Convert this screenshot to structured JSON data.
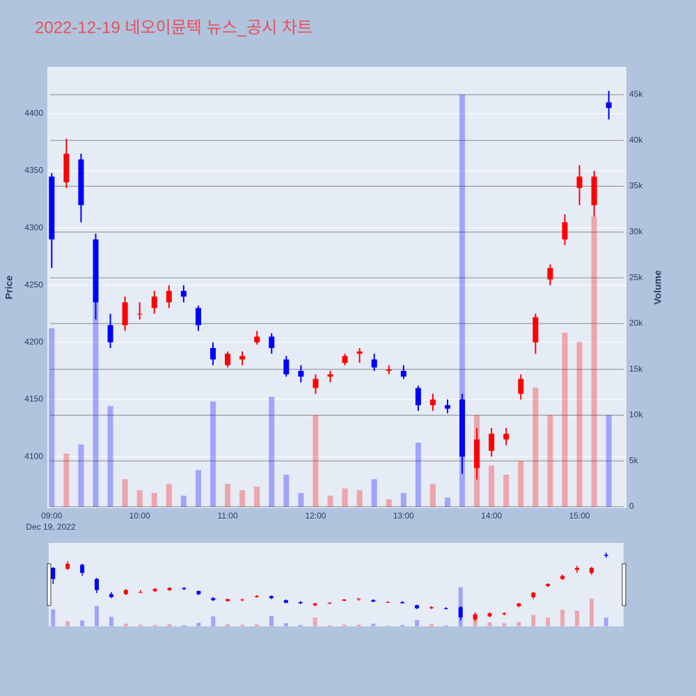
{
  "chart_data": {
    "type": "candlestick",
    "title": "2022-12-19 네오이뮨텍 뉴스_공시 차트",
    "y_label": "Price",
    "y2_label": "Volume",
    "x_sublabel": "Dec 19, 2022",
    "x": [
      "09:00",
      "09:10",
      "09:20",
      "09:30",
      "09:40",
      "09:50",
      "10:00",
      "10:10",
      "10:20",
      "10:30",
      "10:40",
      "10:50",
      "11:00",
      "11:10",
      "11:20",
      "11:30",
      "11:40",
      "11:50",
      "12:00",
      "12:10",
      "12:20",
      "12:30",
      "12:40",
      "12:50",
      "13:00",
      "13:10",
      "13:20",
      "13:30",
      "13:40",
      "13:50",
      "14:00",
      "14:10",
      "14:20",
      "14:30",
      "14:40",
      "14:50",
      "15:00",
      "15:10",
      "15:20"
    ],
    "open": [
      4345,
      4340,
      4360,
      4290,
      4215,
      4215,
      4225,
      4230,
      4235,
      4245,
      4230,
      4195,
      4180,
      4185,
      4200,
      4205,
      4185,
      4175,
      4160,
      4170,
      4182,
      4190,
      4185,
      4175,
      4175,
      4160,
      4145,
      4145,
      4150,
      4090,
      4105,
      4115,
      4155,
      4200,
      4255,
      4290,
      4335,
      4320,
      4410
    ],
    "high": [
      4348,
      4378,
      4365,
      4295,
      4225,
      4240,
      4235,
      4245,
      4250,
      4250,
      4232,
      4200,
      4192,
      4192,
      4210,
      4208,
      4188,
      4180,
      4172,
      4175,
      4190,
      4195,
      4190,
      4180,
      4180,
      4162,
      4155,
      4150,
      4155,
      4125,
      4125,
      4125,
      4172,
      4225,
      4268,
      4312,
      4355,
      4350,
      4420
    ],
    "low": [
      4265,
      4335,
      4305,
      4220,
      4195,
      4210,
      4220,
      4225,
      4230,
      4235,
      4210,
      4180,
      4178,
      4180,
      4198,
      4190,
      4170,
      4165,
      4155,
      4165,
      4180,
      4182,
      4175,
      4172,
      4168,
      4140,
      4140,
      4138,
      4085,
      4080,
      4100,
      4110,
      4150,
      4190,
      4250,
      4285,
      4320,
      4310,
      4395
    ],
    "close": [
      4290,
      4365,
      4320,
      4235,
      4200,
      4235,
      4225,
      4240,
      4245,
      4240,
      4215,
      4185,
      4190,
      4188,
      4205,
      4195,
      4172,
      4170,
      4168,
      4172,
      4188,
      4192,
      4178,
      4176,
      4170,
      4145,
      4150,
      4142,
      4100,
      4115,
      4120,
      4120,
      4168,
      4222,
      4265,
      4305,
      4345,
      4345,
      4405
    ],
    "volume": [
      19500,
      5800,
      6800,
      23500,
      11000,
      3000,
      1800,
      1500,
      2500,
      1200,
      4000,
      11500,
      2500,
      1800,
      2200,
      12000,
      3500,
      1500,
      10000,
      1200,
      2000,
      1800,
      3000,
      800,
      1500,
      7000,
      2500,
      1000,
      45000,
      10000,
      4500,
      3500,
      5000,
      13000,
      10000,
      19000,
      18000,
      31700,
      10000
    ],
    "increasing_color": "#ff0000",
    "decreasing_color": "#0000ff",
    "xlim": [
      "08:57",
      "15:32"
    ],
    "xticks": [
      "09:00",
      "10:00",
      "11:00",
      "12:00",
      "13:00",
      "14:00",
      "15:00"
    ],
    "ylim": [
      4055,
      4441
    ],
    "yticks": [
      4100,
      4150,
      4200,
      4250,
      4300,
      4350,
      4400
    ],
    "y2lim": [
      -150,
      48040
    ],
    "y2ticks": [
      0,
      {
        "value": 5000,
        "label": "5k"
      },
      {
        "value": 10000,
        "label": "10k"
      },
      {
        "value": 15000,
        "label": "15k"
      },
      {
        "value": 20000,
        "label": "20k"
      },
      {
        "value": 25000,
        "label": "25k"
      },
      {
        "value": 30000,
        "label": "30k"
      },
      {
        "value": 35000,
        "label": "35k"
      },
      {
        "value": 40000,
        "label": "40k"
      },
      {
        "value": 45000,
        "label": "45k"
      }
    ]
  }
}
